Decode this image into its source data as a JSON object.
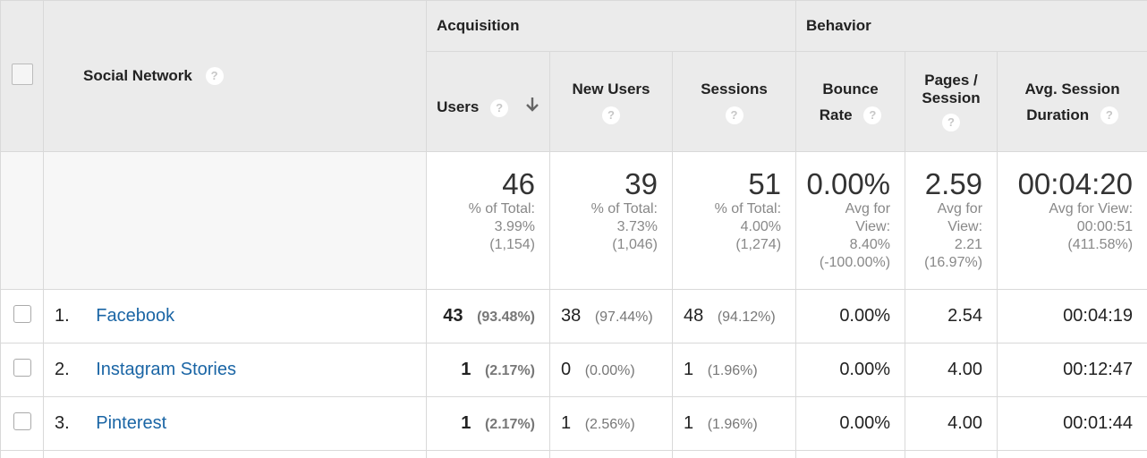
{
  "header": {
    "dimension": "Social Network",
    "groups": {
      "acquisition": "Acquisition",
      "behavior": "Behavior"
    },
    "columns": {
      "users": "Users",
      "new_users": "New Users",
      "sessions": "Sessions",
      "bounce_rate_1": "Bounce",
      "bounce_rate_2": "Rate",
      "pages_session_1": "Pages /",
      "pages_session_2": "Session",
      "avg_duration_1": "Avg. Session",
      "avg_duration_2": "Duration"
    },
    "help_icon_glyph": "?"
  },
  "totals": {
    "users": {
      "value": "46",
      "l1": "% of Total:",
      "l2": "3.99%",
      "l3": "(1,154)"
    },
    "new_users": {
      "value": "39",
      "l1": "% of Total:",
      "l2": "3.73%",
      "l3": "(1,046)"
    },
    "sessions": {
      "value": "51",
      "l1": "% of Total:",
      "l2": "4.00%",
      "l3": "(1,274)"
    },
    "bounce_rate": {
      "value": "0.00%",
      "l1": "Avg for",
      "l2": "View:",
      "l3": "8.40%",
      "l4": "(-100.00%)"
    },
    "pages_session": {
      "value": "2.59",
      "l1": "Avg for",
      "l2": "View:",
      "l3": "2.21",
      "l4": "(16.97%)"
    },
    "avg_duration": {
      "value": "00:04:20",
      "l1": "Avg for View:",
      "l2": "00:00:51",
      "l3": "(411.58%)"
    }
  },
  "rows": [
    {
      "index": "1.",
      "network": "Facebook",
      "users": "43",
      "users_pct": "(93.48%)",
      "new_users": "38",
      "new_users_pct": "(97.44%)",
      "sessions": "48",
      "sessions_pct": "(94.12%)",
      "bounce_rate": "0.00%",
      "pages_session": "2.54",
      "avg_duration": "00:04:19"
    },
    {
      "index": "2.",
      "network": "Instagram Stories",
      "users": "1",
      "users_pct": "(2.17%)",
      "new_users": "0",
      "new_users_pct": "(0.00%)",
      "sessions": "1",
      "sessions_pct": "(1.96%)",
      "bounce_rate": "0.00%",
      "pages_session": "4.00",
      "avg_duration": "00:12:47"
    },
    {
      "index": "3.",
      "network": "Pinterest",
      "users": "1",
      "users_pct": "(2.17%)",
      "new_users": "1",
      "new_users_pct": "(2.56%)",
      "sessions": "1",
      "sessions_pct": "(1.96%)",
      "bounce_rate": "0.00%",
      "pages_session": "4.00",
      "avg_duration": "00:01:44"
    }
  ],
  "colors": {
    "link": "#1a65a5",
    "header_bg": "#ebebeb",
    "border": "#d9d9d9"
  }
}
